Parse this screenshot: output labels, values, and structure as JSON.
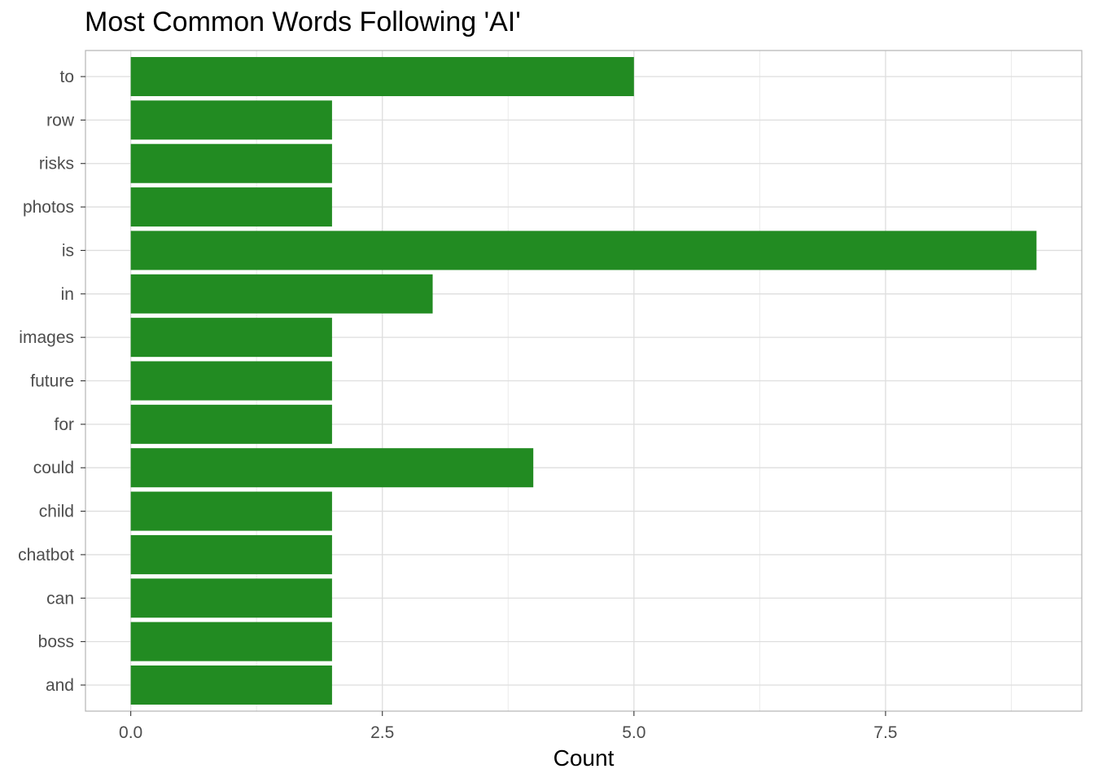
{
  "chart_data": {
    "type": "bar",
    "orientation": "horizontal",
    "title": "Most Common Words Following 'AI'",
    "xlabel": "Count",
    "ylabel": "",
    "categories": [
      "and",
      "boss",
      "can",
      "chatbot",
      "child",
      "could",
      "for",
      "future",
      "images",
      "in",
      "is",
      "photos",
      "risks",
      "row",
      "to"
    ],
    "values": [
      2,
      2,
      2,
      2,
      2,
      4,
      2,
      2,
      2,
      3,
      9,
      2,
      2,
      2,
      5
    ],
    "xlim": [
      -0.45,
      9.45
    ],
    "xticks": [
      0,
      2.5,
      5,
      7.5
    ],
    "xtick_labels": [
      "0.0",
      "2.5",
      "5.0",
      "7.5"
    ],
    "grid": true,
    "bar_color": "#228B22",
    "legend": "none"
  }
}
